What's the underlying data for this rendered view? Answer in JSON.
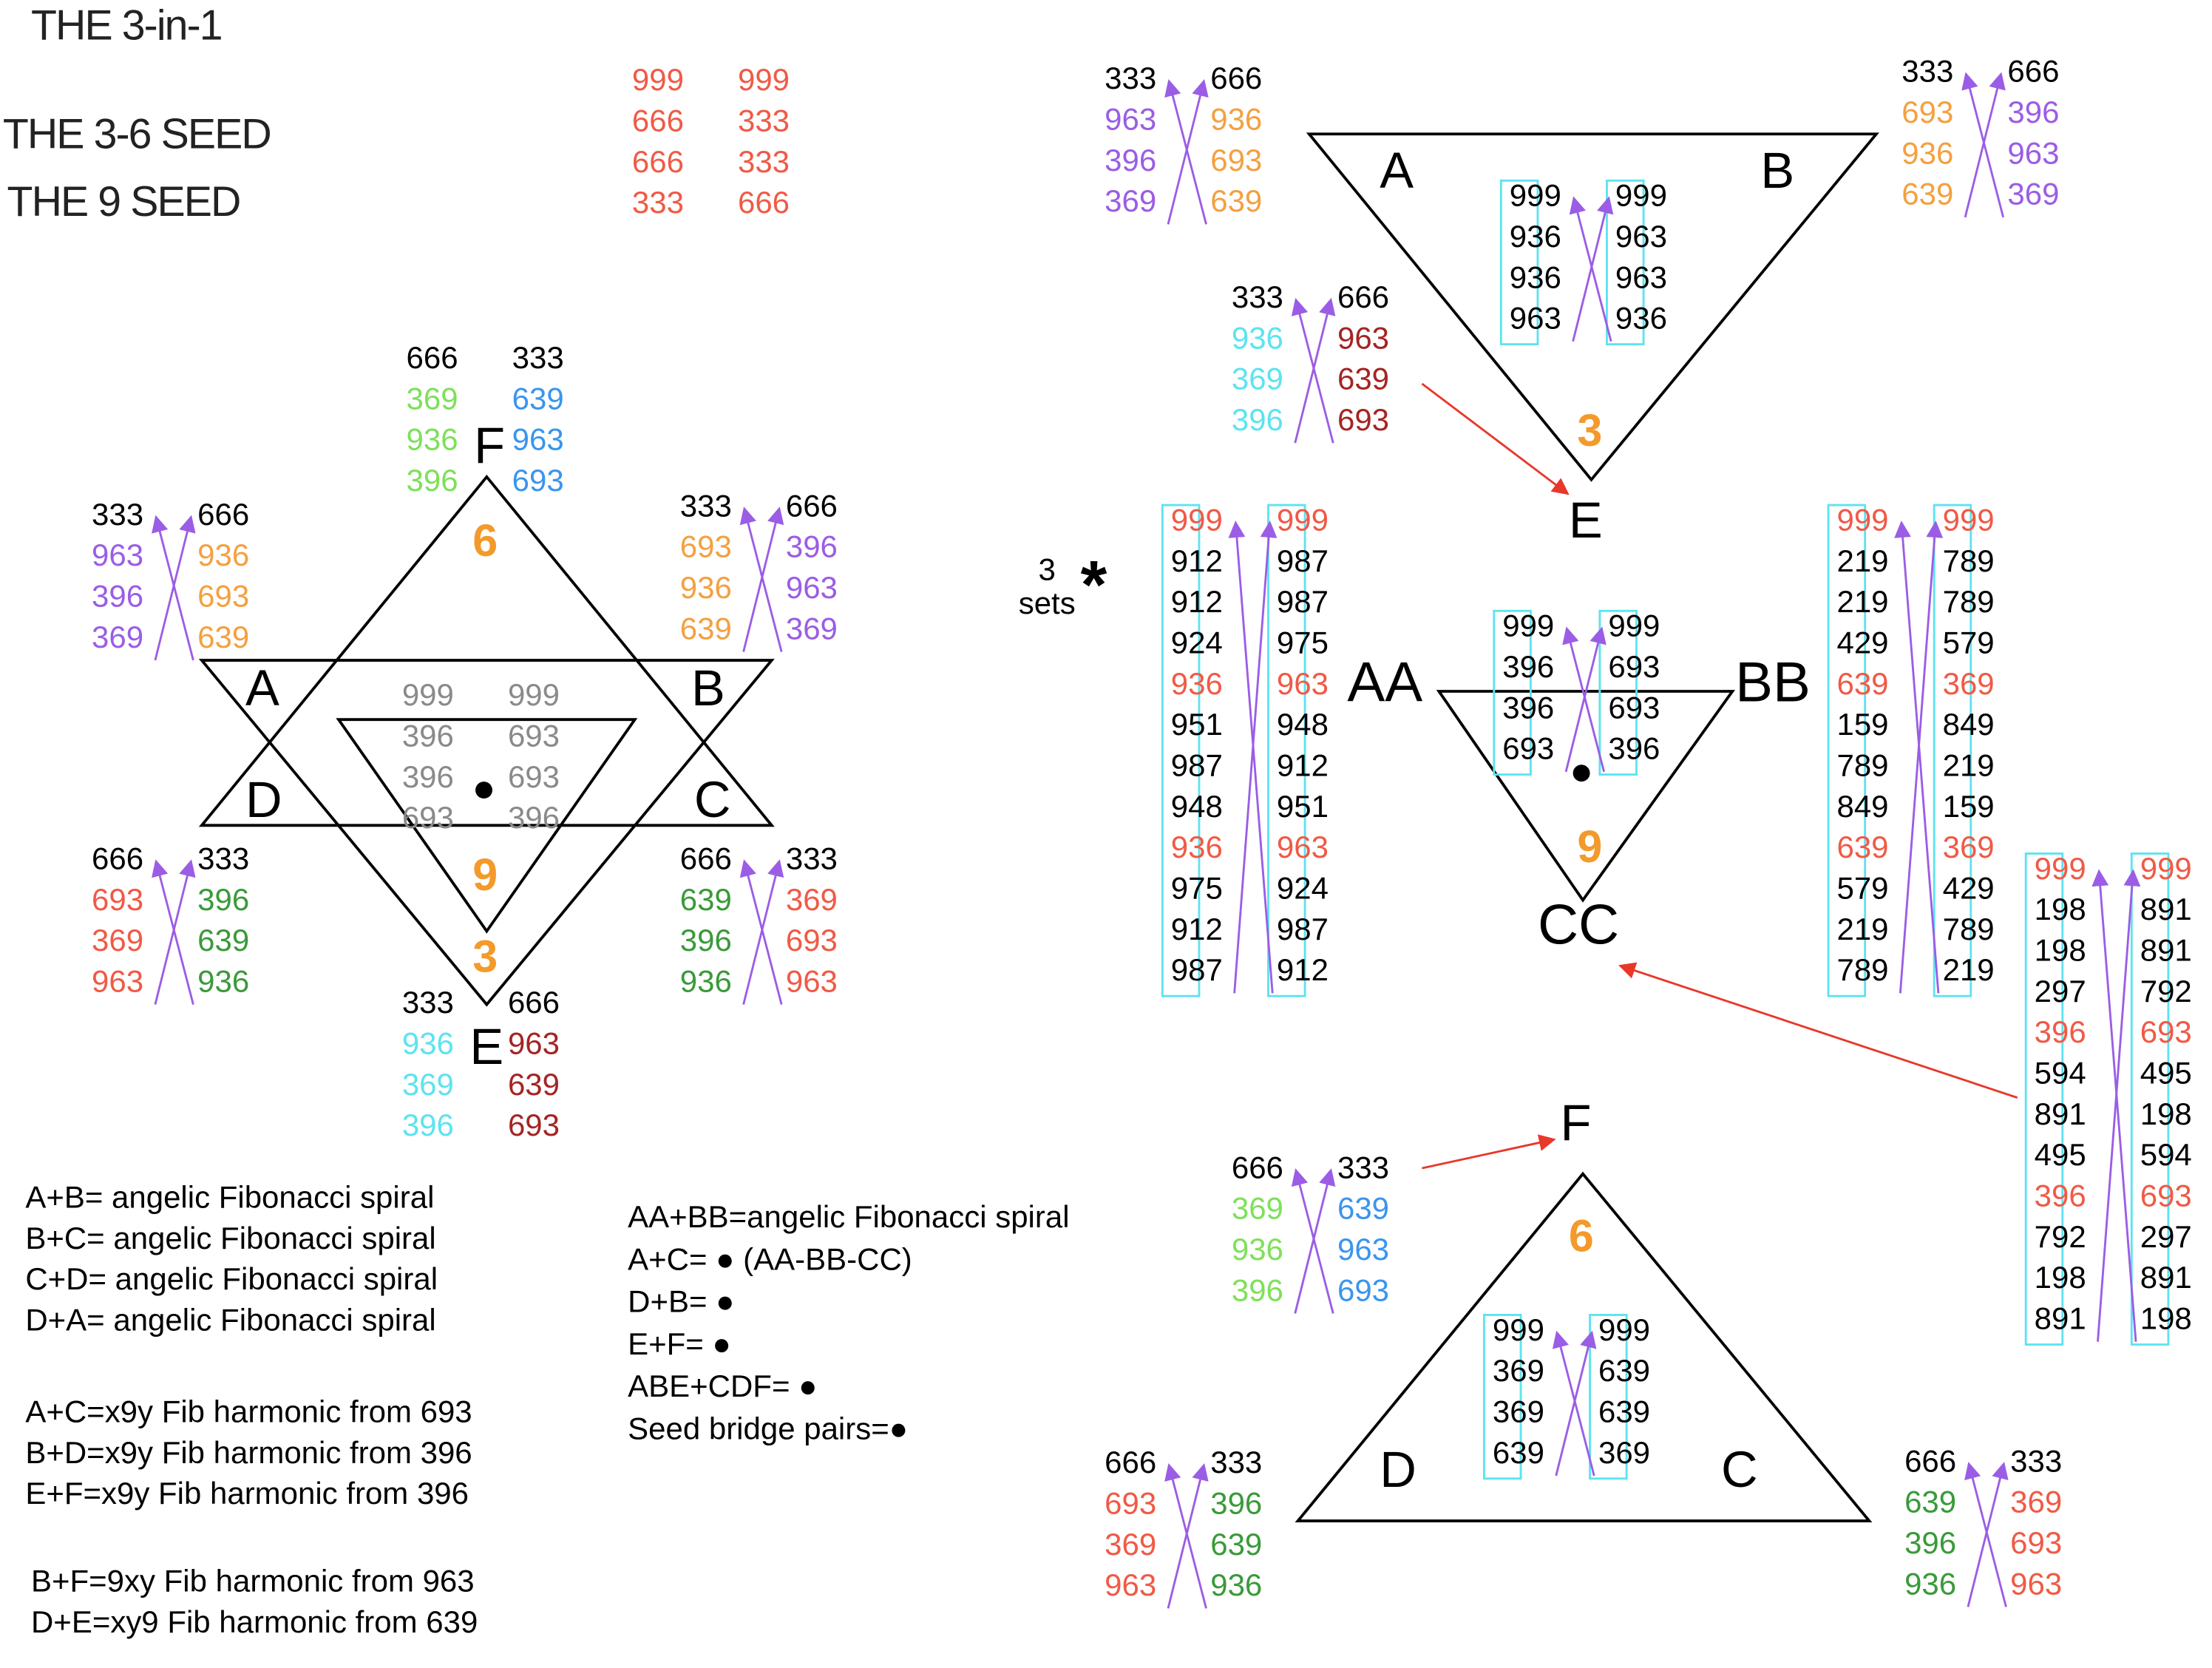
{
  "colors": {
    "k": "#000000",
    "red": "#f05a46",
    "orange": "#f4a040",
    "purple": "#9b5de5",
    "lgreen": "#7ee05a",
    "green": "#3a9a3a",
    "blue": "#3a95ee",
    "cyan": "#5de3f0",
    "dred": "#a52424",
    "gray": "#8a8a8a",
    "accent_number": "#f39a2b",
    "arrow_red": "#e8382a",
    "box_cyan": "#5de3f0"
  },
  "titles": [
    "THE 3-in-1",
    "THE 3-6 SEED",
    "THE 9 SEED"
  ],
  "labels": {
    "A1": "A",
    "B1": "B",
    "C1": "C",
    "D1": "D",
    "E1": "E",
    "F1": "F",
    "A2": "A",
    "B2": "B",
    "E2": "E",
    "AA": "AA",
    "BB": "BB",
    "CC": "CC",
    "F3": "F",
    "D3": "D",
    "C3": "C",
    "six1": "6",
    "nine1": "9",
    "three1": "3",
    "three2": "3",
    "nine2": "9",
    "six3": "6",
    "sets": "3\nsets",
    "star": "*"
  },
  "groups": {
    "seed": {
      "left": [
        [
          "999",
          "red"
        ],
        [
          "666",
          "red"
        ],
        [
          "666",
          "red"
        ],
        [
          "333",
          "red"
        ]
      ],
      "right": [
        [
          "999",
          "red"
        ],
        [
          "333",
          "red"
        ],
        [
          "333",
          "red"
        ],
        [
          "666",
          "red"
        ]
      ]
    },
    "starF": {
      "left": [
        [
          "666",
          "k"
        ],
        [
          "369",
          "lgreen"
        ],
        [
          "936",
          "lgreen"
        ],
        [
          "396",
          "lgreen"
        ]
      ],
      "right": [
        [
          "333",
          "k"
        ],
        [
          "639",
          "blue"
        ],
        [
          "963",
          "blue"
        ],
        [
          "693",
          "blue"
        ]
      ]
    },
    "starTL": {
      "left": [
        [
          "333",
          "k"
        ],
        [
          "963",
          "purple"
        ],
        [
          "396",
          "purple"
        ],
        [
          "369",
          "purple"
        ]
      ],
      "right": [
        [
          "666",
          "k"
        ],
        [
          "936",
          "orange"
        ],
        [
          "693",
          "orange"
        ],
        [
          "639",
          "orange"
        ]
      ]
    },
    "starTR": {
      "left": [
        [
          "333",
          "k"
        ],
        [
          "693",
          "orange"
        ],
        [
          "936",
          "orange"
        ],
        [
          "639",
          "orange"
        ]
      ],
      "right": [
        [
          "666",
          "k"
        ],
        [
          "396",
          "purple"
        ],
        [
          "963",
          "purple"
        ],
        [
          "369",
          "purple"
        ]
      ]
    },
    "starInner": {
      "left": [
        [
          "999",
          "gray"
        ],
        [
          "396",
          "gray"
        ],
        [
          "396",
          "gray"
        ],
        [
          "693",
          "gray"
        ]
      ],
      "right": [
        [
          "999",
          "gray"
        ],
        [
          "693",
          "gray"
        ],
        [
          "693",
          "gray"
        ],
        [
          "396",
          "gray"
        ]
      ]
    },
    "starBL": {
      "left": [
        [
          "666",
          "k"
        ],
        [
          "693",
          "red"
        ],
        [
          "369",
          "red"
        ],
        [
          "963",
          "red"
        ]
      ],
      "right": [
        [
          "333",
          "k"
        ],
        [
          "396",
          "green"
        ],
        [
          "639",
          "green"
        ],
        [
          "936",
          "green"
        ]
      ]
    },
    "starBR": {
      "left": [
        [
          "666",
          "k"
        ],
        [
          "639",
          "green"
        ],
        [
          "396",
          "green"
        ],
        [
          "936",
          "green"
        ]
      ],
      "right": [
        [
          "333",
          "k"
        ],
        [
          "369",
          "red"
        ],
        [
          "693",
          "red"
        ],
        [
          "963",
          "red"
        ]
      ]
    },
    "starE": {
      "left": [
        [
          "333",
          "k"
        ],
        [
          "936",
          "cyan"
        ],
        [
          "369",
          "cyan"
        ],
        [
          "396",
          "cyan"
        ]
      ],
      "right": [
        [
          "666",
          "k"
        ],
        [
          "963",
          "dred"
        ],
        [
          "639",
          "dred"
        ],
        [
          "693",
          "dred"
        ]
      ]
    },
    "t1TL": {
      "left": [
        [
          "333",
          "k"
        ],
        [
          "963",
          "purple"
        ],
        [
          "396",
          "purple"
        ],
        [
          "369",
          "purple"
        ]
      ],
      "right": [
        [
          "666",
          "k"
        ],
        [
          "936",
          "orange"
        ],
        [
          "693",
          "orange"
        ],
        [
          "639",
          "orange"
        ]
      ]
    },
    "t1TR": {
      "left": [
        [
          "333",
          "k"
        ],
        [
          "693",
          "orange"
        ],
        [
          "936",
          "orange"
        ],
        [
          "639",
          "orange"
        ]
      ],
      "right": [
        [
          "666",
          "k"
        ],
        [
          "396",
          "purple"
        ],
        [
          "963",
          "purple"
        ],
        [
          "369",
          "purple"
        ]
      ]
    },
    "t1In": {
      "left": [
        [
          "999",
          "k"
        ],
        [
          "936",
          "k"
        ],
        [
          "936",
          "k"
        ],
        [
          "963",
          "k"
        ]
      ],
      "right": [
        [
          "999",
          "k"
        ],
        [
          "963",
          "k"
        ],
        [
          "963",
          "k"
        ],
        [
          "936",
          "k"
        ]
      ]
    },
    "t1E": {
      "left": [
        [
          "333",
          "k"
        ],
        [
          "936",
          "cyan"
        ],
        [
          "369",
          "cyan"
        ],
        [
          "396",
          "cyan"
        ]
      ],
      "right": [
        [
          "666",
          "k"
        ],
        [
          "963",
          "dred"
        ],
        [
          "639",
          "dred"
        ],
        [
          "693",
          "dred"
        ]
      ]
    },
    "t2In": {
      "left": [
        [
          "999",
          "k"
        ],
        [
          "396",
          "k"
        ],
        [
          "396",
          "k"
        ],
        [
          "693",
          "k"
        ]
      ],
      "right": [
        [
          "999",
          "k"
        ],
        [
          "693",
          "k"
        ],
        [
          "693",
          "k"
        ],
        [
          "396",
          "k"
        ]
      ]
    },
    "colL": {
      "left": [
        [
          "999",
          "red"
        ],
        [
          "912",
          "k"
        ],
        [
          "912",
          "k"
        ],
        [
          "924",
          "k"
        ],
        [
          "936",
          "red"
        ],
        [
          "951",
          "k"
        ],
        [
          "987",
          "k"
        ],
        [
          "948",
          "k"
        ],
        [
          "936",
          "red"
        ],
        [
          "975",
          "k"
        ],
        [
          "912",
          "k"
        ],
        [
          "987",
          "k"
        ]
      ],
      "right": [
        [
          "999",
          "red"
        ],
        [
          "987",
          "k"
        ],
        [
          "987",
          "k"
        ],
        [
          "975",
          "k"
        ],
        [
          "963",
          "red"
        ],
        [
          "948",
          "k"
        ],
        [
          "912",
          "k"
        ],
        [
          "951",
          "k"
        ],
        [
          "963",
          "red"
        ],
        [
          "924",
          "k"
        ],
        [
          "987",
          "k"
        ],
        [
          "912",
          "k"
        ]
      ]
    },
    "colR": {
      "left": [
        [
          "999",
          "red"
        ],
        [
          "219",
          "k"
        ],
        [
          "219",
          "k"
        ],
        [
          "429",
          "k"
        ],
        [
          "639",
          "red"
        ],
        [
          "159",
          "k"
        ],
        [
          "789",
          "k"
        ],
        [
          "849",
          "k"
        ],
        [
          "639",
          "red"
        ],
        [
          "579",
          "k"
        ],
        [
          "219",
          "k"
        ],
        [
          "789",
          "k"
        ]
      ],
      "right": [
        [
          "999",
          "red"
        ],
        [
          "789",
          "k"
        ],
        [
          "789",
          "k"
        ],
        [
          "579",
          "k"
        ],
        [
          "369",
          "red"
        ],
        [
          "849",
          "k"
        ],
        [
          "219",
          "k"
        ],
        [
          "159",
          "k"
        ],
        [
          "369",
          "red"
        ],
        [
          "429",
          "k"
        ],
        [
          "789",
          "k"
        ],
        [
          "219",
          "k"
        ]
      ]
    },
    "colFar": {
      "left": [
        [
          "999",
          "red"
        ],
        [
          "198",
          "k"
        ],
        [
          "198",
          "k"
        ],
        [
          "297",
          "k"
        ],
        [
          "396",
          "red"
        ],
        [
          "594",
          "k"
        ],
        [
          "891",
          "k"
        ],
        [
          "495",
          "k"
        ],
        [
          "396",
          "red"
        ],
        [
          "792",
          "k"
        ],
        [
          "198",
          "k"
        ],
        [
          "891",
          "k"
        ]
      ],
      "right": [
        [
          "999",
          "red"
        ],
        [
          "891",
          "k"
        ],
        [
          "891",
          "k"
        ],
        [
          "792",
          "k"
        ],
        [
          "693",
          "red"
        ],
        [
          "495",
          "k"
        ],
        [
          "198",
          "k"
        ],
        [
          "594",
          "k"
        ],
        [
          "693",
          "red"
        ],
        [
          "297",
          "k"
        ],
        [
          "891",
          "k"
        ],
        [
          "198",
          "k"
        ]
      ]
    },
    "t3F": {
      "left": [
        [
          "666",
          "k"
        ],
        [
          "369",
          "lgreen"
        ],
        [
          "936",
          "lgreen"
        ],
        [
          "396",
          "lgreen"
        ]
      ],
      "right": [
        [
          "333",
          "k"
        ],
        [
          "639",
          "blue"
        ],
        [
          "963",
          "blue"
        ],
        [
          "693",
          "blue"
        ]
      ]
    },
    "t3In": {
      "left": [
        [
          "999",
          "k"
        ],
        [
          "369",
          "k"
        ],
        [
          "369",
          "k"
        ],
        [
          "639",
          "k"
        ]
      ],
      "right": [
        [
          "999",
          "k"
        ],
        [
          "639",
          "k"
        ],
        [
          "639",
          "k"
        ],
        [
          "369",
          "k"
        ]
      ]
    },
    "t3BL": {
      "left": [
        [
          "666",
          "k"
        ],
        [
          "693",
          "red"
        ],
        [
          "369",
          "red"
        ],
        [
          "963",
          "red"
        ]
      ],
      "right": [
        [
          "333",
          "k"
        ],
        [
          "396",
          "green"
        ],
        [
          "639",
          "green"
        ],
        [
          "936",
          "green"
        ]
      ]
    },
    "t3BR": {
      "left": [
        [
          "666",
          "k"
        ],
        [
          "639",
          "green"
        ],
        [
          "396",
          "green"
        ],
        [
          "936",
          "green"
        ]
      ],
      "right": [
        [
          "333",
          "k"
        ],
        [
          "369",
          "red"
        ],
        [
          "693",
          "red"
        ],
        [
          "963",
          "red"
        ]
      ]
    }
  },
  "notes_left_1": [
    "A+B= angelic Fibonacci spiral",
    "B+C= angelic Fibonacci spiral",
    "C+D= angelic Fibonacci spiral",
    "D+A= angelic Fibonacci spiral"
  ],
  "notes_left_2": [
    "A+C=x9y Fib harmonic from 693",
    "B+D=x9y Fib harmonic from 396",
    "E+F=x9y Fib harmonic from 396"
  ],
  "notes_left_3": [
    "B+F=9xy Fib harmonic from 963",
    "D+E=xy9 Fib harmonic from 639"
  ],
  "notes_mid": [
    "AA+BB=angelic Fibonacci spiral",
    "A+C= ●  (AA-BB-CC)",
    "D+B= ●",
    "E+F= ●",
    "ABE+CDF= ●",
    "Seed bridge pairs=●"
  ]
}
